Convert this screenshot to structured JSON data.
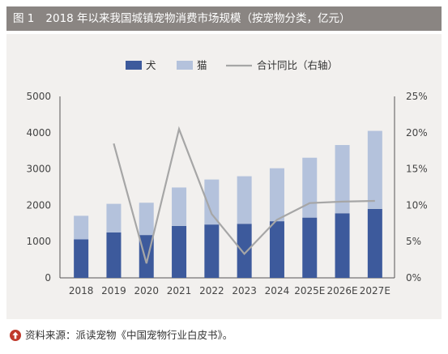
{
  "figure": {
    "label": "图 1",
    "title": "2018 年以来我国城镇宠物消费市场规模（按宠物分类，亿元）",
    "source": "资料来源：派读宠物《中国宠物行业白皮书》。",
    "source_icon": "up-arrow-circle-icon"
  },
  "colors": {
    "title_bg": "#8a8582",
    "panel_bg": "#f2f0ee",
    "dog": "#3d5a9c",
    "cat": "#b4c2dc",
    "line": "#a6a6a6",
    "source_icon": "#c0392b"
  },
  "chart_data": {
    "type": "bar",
    "stacked": true,
    "categories": [
      "2018",
      "2019",
      "2020",
      "2021",
      "2022",
      "2023",
      "2024",
      "2025E",
      "2026E",
      "2027E"
    ],
    "series": [
      {
        "name": "犬",
        "type": "bar",
        "axis": "left",
        "values": [
          1060,
          1250,
          1180,
          1430,
          1470,
          1490,
          1560,
          1660,
          1780,
          1900
        ]
      },
      {
        "name": "猫",
        "type": "bar",
        "axis": "left",
        "values": [
          650,
          790,
          890,
          1060,
          1240,
          1310,
          1460,
          1650,
          1880,
          2150
        ]
      },
      {
        "name": "合计同比（右轴）",
        "type": "line",
        "axis": "right",
        "values": [
          null,
          18.5,
          2.0,
          20.5,
          8.8,
          3.3,
          8.0,
          10.3,
          10.5,
          10.6
        ]
      }
    ],
    "y_left": {
      "min": 0,
      "max": 5000,
      "ticks": [
        "0",
        "1000",
        "2000",
        "3000",
        "4000",
        "5000"
      ]
    },
    "y_right": {
      "min": 0,
      "max": 25,
      "ticks": [
        "0%",
        "5%",
        "10%",
        "15%",
        "20%",
        "25%"
      ]
    },
    "legend_position": "top-center",
    "grid": false
  }
}
